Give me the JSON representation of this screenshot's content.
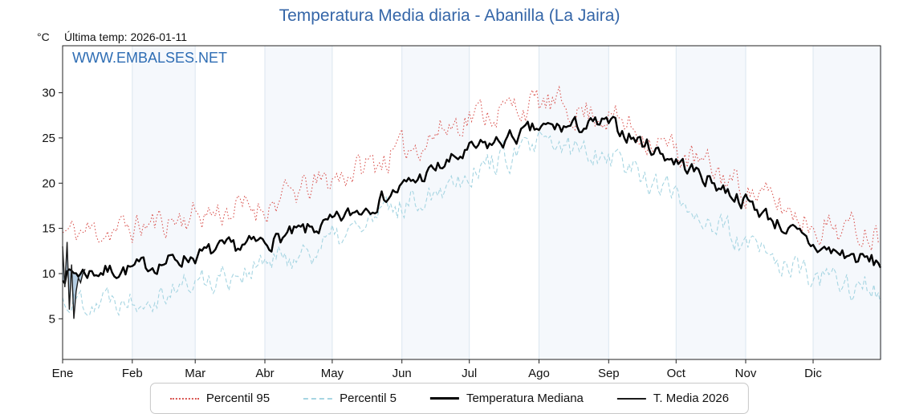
{
  "header": {
    "unit": "°C",
    "last_temp_label": "Última temp: 2026-01-11"
  },
  "watermark": "WWW.EMBALSES.NET",
  "chart_data": {
    "type": "line",
    "title": "Temperatura Media diaria - Abanilla (La Jaira)",
    "ylabel": "°C",
    "ylim": [
      0.5,
      35.2
    ],
    "yticks": [
      5,
      10,
      15,
      20,
      25,
      30
    ],
    "x_months": [
      "Ene",
      "Feb",
      "Mar",
      "Abr",
      "May",
      "Jun",
      "Jul",
      "Ago",
      "Sep",
      "Oct",
      "Nov",
      "Dic"
    ],
    "month_start_days": [
      0,
      31,
      59,
      90,
      120,
      151,
      181,
      212,
      243,
      273,
      304,
      334,
      365
    ],
    "grid": "vertical-month-lines",
    "legend_position": "bottom",
    "series": [
      {
        "name": "Percentil 95",
        "color": "#d9534f",
        "style": "dotted",
        "width": 1.1,
        "monthly_anchors": [
          14.5,
          15,
          16.5,
          17.5,
          20.5,
          23.5,
          27.5,
          28.8,
          27.5,
          23.5,
          19.5,
          15.5,
          14.5
        ],
        "daily_noise": 1.5
      },
      {
        "name": "Percentil 5",
        "color": "#a6d5e2",
        "style": "dashed",
        "width": 1.1,
        "monthly_anchors": [
          7,
          7.5,
          9,
          11,
          13.5,
          17.5,
          21.5,
          24,
          23.5,
          18.5,
          13,
          9.5,
          8
        ],
        "daily_noise": 1.4
      },
      {
        "name": "Temperatura Mediana",
        "color": "#000000",
        "style": "solid",
        "width": 2.4,
        "monthly_anchors": [
          10,
          10.5,
          12,
          13.5,
          15.5,
          19.5,
          23.5,
          26,
          26.5,
          22.5,
          18,
          13,
          11
        ],
        "daily_noise": 0.8
      },
      {
        "name": "T. Media 2026",
        "color": "#1b1b1b",
        "style": "solid",
        "width": 1.4,
        "days": [
          13,
          8.5,
          13.5,
          6,
          11,
          5,
          8,
          9.5,
          9,
          10,
          10.5
        ]
      }
    ],
    "fill_between": {
      "series_a": "T. Media 2026",
      "series_b": "Temperatura Mediana",
      "color": "#7aa6cc",
      "opacity": 0.55
    }
  }
}
